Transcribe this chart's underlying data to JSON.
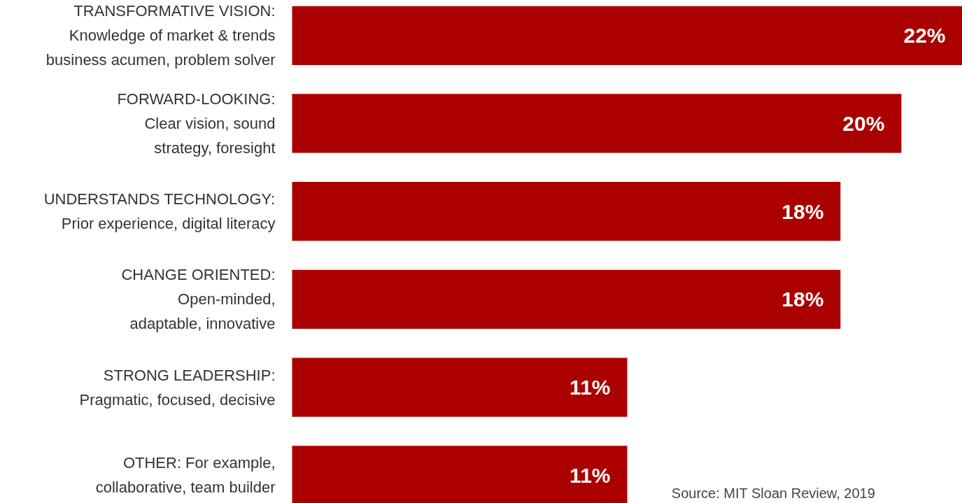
{
  "chart_data": {
    "type": "bar",
    "orientation": "horizontal",
    "data_labels": true,
    "grid": false,
    "categories": [
      "TRANSFORMATIVE VISION:\nKnowledge of market & trends\nbusiness acumen, problem solver",
      "FORWARD-LOOKING:\nClear vision, sound\nstrategy, foresight",
      "UNDERSTANDS TECHNOLOGY:\nPrior experience, digital literacy",
      "CHANGE ORIENTED:\nOpen-minded,\nadaptable, innovative",
      "STRONG LEADERSHIP:\nPragmatic, focused, decisive",
      "OTHER: For example,\ncollaborative, team builder"
    ],
    "values": [
      22,
      20,
      18,
      18,
      11,
      11
    ],
    "value_labels": [
      "22%",
      "20%",
      "18%",
      "18%",
      "11%",
      "11%"
    ],
    "color": "#ab0000",
    "xlim": [
      0,
      22
    ],
    "annotations": [
      "Source: MIT Sloan Review, 2019"
    ]
  }
}
